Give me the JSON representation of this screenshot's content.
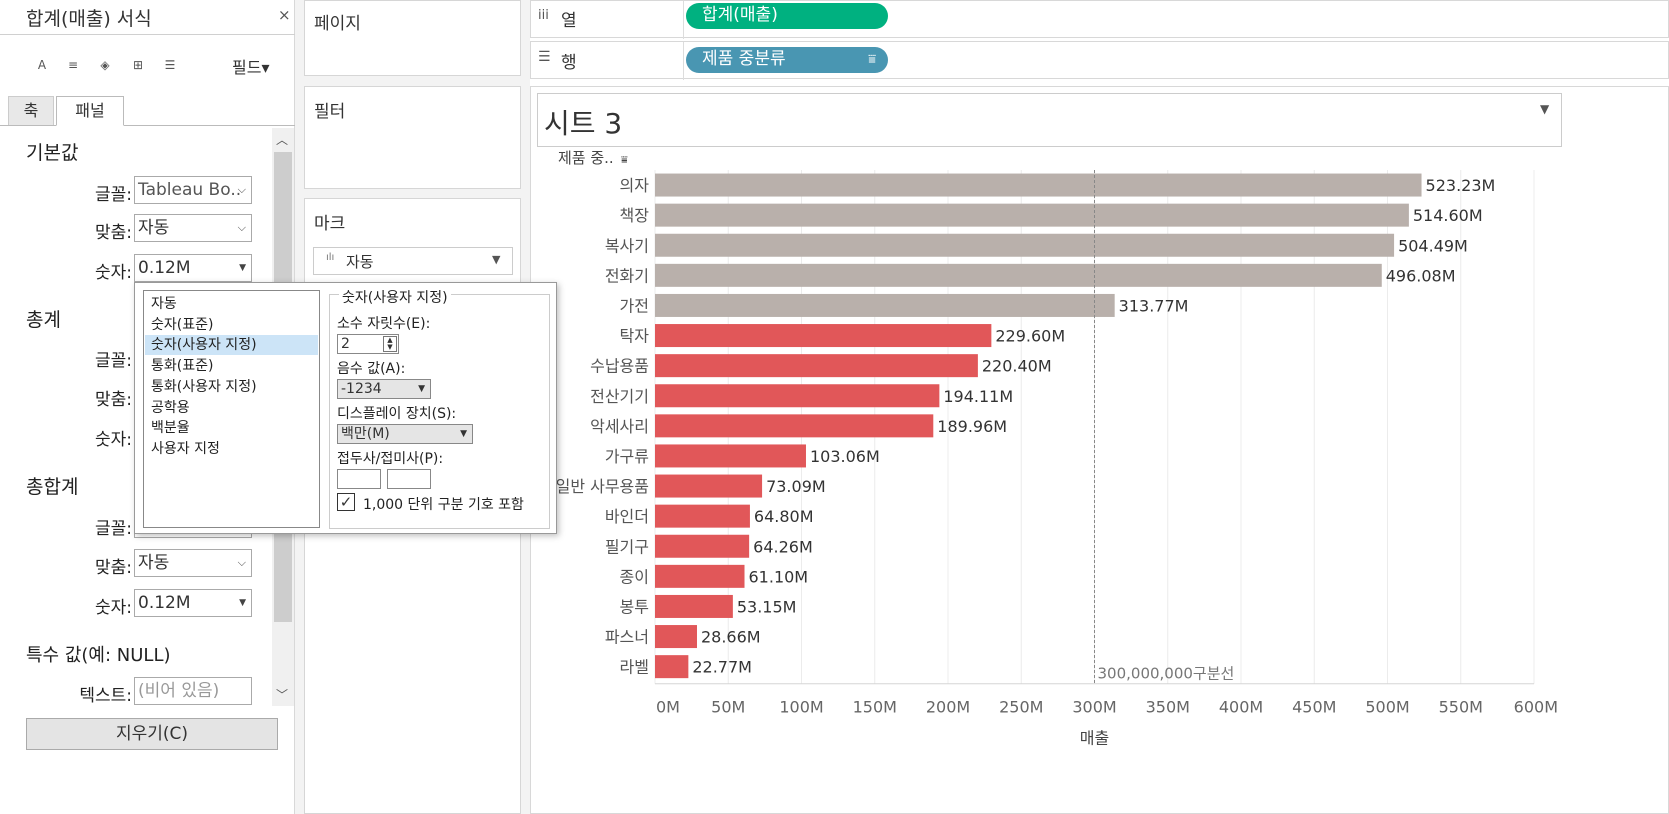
{
  "format_pane": {
    "title": "합계(매출) 서식",
    "close": "×",
    "toolbar": [
      "A",
      "≡",
      "◈",
      "⊞",
      "☰"
    ],
    "field_menu": "필드▾",
    "tabs": [
      {
        "label": "축"
      },
      {
        "label": "패널"
      }
    ],
    "sections": {
      "default": {
        "heading": "기본값",
        "font_label": "글꼴:",
        "font_value": "Tableau Bo..",
        "align_label": "맞춤:",
        "align_value": "자동",
        "number_label": "숫자:",
        "number_value": "0.12M"
      },
      "totals": {
        "heading": "총계",
        "font_label": "글꼴:",
        "align_label": "맞춤:",
        "number_label": "숫자:"
      },
      "grand_totals": {
        "heading": "총합계",
        "font_label": "글꼴:",
        "align_label": "맞춤:",
        "align_value": "자동",
        "number_label": "숫자:",
        "number_value": "0.12M"
      },
      "special": {
        "heading": "특수 값(예: NULL)",
        "text_label": "텍스트:",
        "text_placeholder": "(비어 있음)"
      }
    },
    "clear_button": "지우기(C)"
  },
  "number_popup": {
    "list": [
      "자동",
      "숫자(표준)",
      "숫자(사용자 지정)",
      "통화(표준)",
      "통화(사용자 지정)",
      "공학용",
      "백분율",
      "사용자 지정"
    ],
    "selected_index": 2,
    "group_title": "숫자(사용자 지정)",
    "decimals_label": "소수 자릿수(E):",
    "decimals_value": "2",
    "negative_label": "음수 값(A):",
    "negative_value": "-1234",
    "units_label": "디스플레이 장치(S):",
    "units_value": "백만(M)",
    "prefix_label": "접두사/접미사(P):",
    "thousands_label": "1,000 단위 구분 기호 포함",
    "thousands_checked": true
  },
  "shelves": {
    "pages": "페이지",
    "filters": "필터",
    "marks": "마크",
    "marks_type": "자동",
    "columns_label": "열",
    "columns_pill": "합계(매출)",
    "rows_label": "행",
    "rows_pill": "제품 중분류"
  },
  "colors": {
    "columns_pill": "#00b180",
    "rows_pill": "#4996b2",
    "bar_above": "#b9b0ab",
    "bar_below": "#e15759"
  },
  "sheet": {
    "title": "시트 3"
  },
  "chart_data": {
    "type": "bar",
    "orientation": "horizontal",
    "row_header": "제품 중..",
    "categories": [
      "의자",
      "책장",
      "복사기",
      "전화기",
      "가전",
      "탁자",
      "수납용품",
      "전산기기",
      "악세사리",
      "가구류",
      "일반 사무용품",
      "바인더",
      "필기구",
      "종이",
      "봉투",
      "파스너",
      "라벨"
    ],
    "values": [
      523.23,
      514.6,
      504.49,
      496.08,
      313.77,
      229.6,
      220.4,
      194.11,
      189.96,
      103.06,
      73.09,
      64.8,
      64.26,
      61.1,
      53.15,
      28.66,
      22.77
    ],
    "value_labels": [
      "523.23M",
      "514.60M",
      "504.49M",
      "496.08M",
      "313.77M",
      "229.60M",
      "220.40M",
      "194.11M",
      "189.96M",
      "103.06M",
      "73.09M",
      "64.80M",
      "64.26M",
      "61.10M",
      "53.15M",
      "28.66M",
      "22.77M"
    ],
    "unit": "M",
    "xlim": [
      0,
      600
    ],
    "xticks": [
      0,
      50,
      100,
      150,
      200,
      250,
      300,
      350,
      400,
      450,
      500,
      550,
      600
    ],
    "xtick_labels": [
      "0M",
      "50M",
      "100M",
      "150M",
      "200M",
      "250M",
      "300M",
      "350M",
      "400M",
      "450M",
      "500M",
      "550M",
      "600M"
    ],
    "xlabel": "매출",
    "reference_line": {
      "value": 300,
      "label": "300,000,000구분선"
    },
    "color_rule": "values above reference line shown in grey, below in red"
  }
}
